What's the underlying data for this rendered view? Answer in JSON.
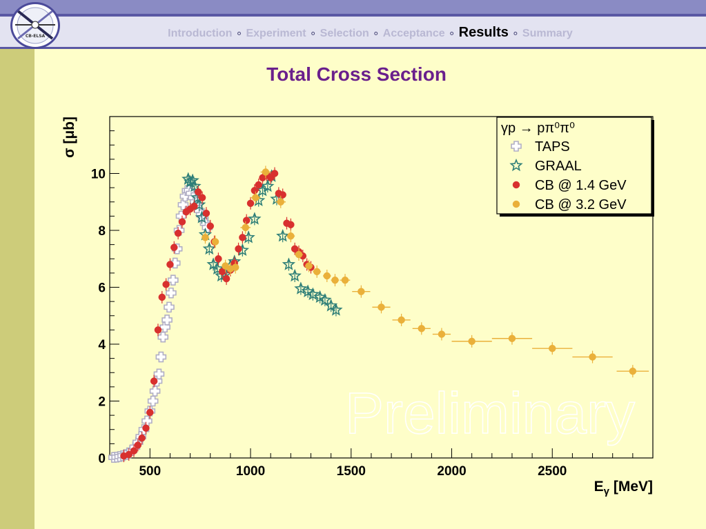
{
  "header": {
    "nav": [
      {
        "label": "Introduction",
        "active": false
      },
      {
        "label": "Experiment",
        "active": false
      },
      {
        "label": "Selection",
        "active": false
      },
      {
        "label": "Acceptance",
        "active": false
      },
      {
        "label": "Results",
        "active": true
      },
      {
        "label": "Summary",
        "active": false
      }
    ],
    "separator": "∘",
    "logo_text": "CB-ELSA"
  },
  "slide": {
    "title": "Total Cross Section"
  },
  "colors": {
    "background": "#fefec9",
    "sidebar": "#cdcc7a",
    "title": "#6a1f8c",
    "taps": "#b0aec4",
    "graal": "#2f7f78",
    "cb14": "#d8302e",
    "cb32": "#eab03a"
  },
  "chart_data": {
    "type": "scatter",
    "xlabel": "E_γ [MeV]",
    "ylabel": "σ [μb]",
    "xlim": [
      300,
      3000
    ],
    "ylim": [
      0,
      12
    ],
    "xticks": [
      500,
      1000,
      1500,
      2000,
      2500
    ],
    "yticks": [
      0,
      2,
      4,
      6,
      8,
      10
    ],
    "legend_placement": "top-right",
    "legend_title": "γp → pπ⁰π⁰",
    "watermark": "Preliminary",
    "series": [
      {
        "name": "TAPS",
        "marker": "open-cross",
        "color": "#b0aec4",
        "x": [
          320,
          335,
          350,
          365,
          380,
          395,
          410,
          425,
          440,
          455,
          470,
          485,
          500,
          515,
          525,
          535,
          545,
          555,
          565,
          575,
          585,
          595,
          605,
          615,
          625,
          635,
          645,
          655,
          665,
          675,
          685,
          695,
          705,
          715,
          725,
          735,
          745,
          755,
          765,
          775,
          785
        ],
        "y": [
          0.02,
          0.03,
          0.05,
          0.08,
          0.12,
          0.18,
          0.26,
          0.38,
          0.55,
          0.75,
          1.0,
          1.3,
          1.65,
          2.0,
          2.35,
          2.7,
          2.95,
          3.55,
          4.25,
          4.6,
          4.85,
          5.3,
          5.8,
          6.25,
          6.85,
          7.35,
          8.0,
          8.5,
          8.9,
          9.2,
          9.4,
          9.4,
          9.3,
          9.15,
          9.0,
          8.85,
          8.7,
          8.55,
          8.4,
          8.25,
          8.1
        ]
      },
      {
        "name": "GRAAL",
        "marker": "open-star",
        "color": "#2f7f78",
        "x": [
          690,
          700,
          712,
          722,
          735,
          745,
          758,
          775,
          795,
          815,
          835,
          855,
          875,
          900,
          920,
          960,
          990,
          1020,
          1040,
          1060,
          1085,
          1105,
          1130,
          1160,
          1190,
          1220,
          1250,
          1285,
          1310,
          1345,
          1370,
          1400,
          1425
        ],
        "y": [
          9.8,
          9.7,
          9.75,
          9.55,
          9.15,
          8.9,
          8.45,
          7.85,
          7.35,
          6.8,
          6.65,
          6.4,
          6.45,
          6.75,
          6.9,
          7.3,
          7.75,
          8.4,
          9.05,
          9.4,
          9.55,
          9.9,
          9.1,
          7.8,
          6.8,
          6.4,
          5.95,
          5.85,
          5.75,
          5.65,
          5.55,
          5.35,
          5.2
        ]
      },
      {
        "name": "CB @ 1.4 GeV",
        "marker": "filled-circle",
        "color": "#d8302e",
        "x": [
          370,
          395,
          420,
          440,
          460,
          480,
          500,
          520,
          540,
          560,
          580,
          600,
          620,
          640,
          660,
          680,
          700,
          720,
          740,
          760,
          780,
          800,
          820,
          840,
          860,
          880,
          900,
          920,
          940,
          960,
          980,
          1000,
          1020,
          1040,
          1060,
          1080,
          1100,
          1120,
          1140,
          1160,
          1180,
          1200,
          1220,
          1240,
          1260,
          1280,
          1300
        ],
        "y": [
          0.07,
          0.12,
          0.25,
          0.45,
          0.7,
          1.05,
          1.6,
          2.7,
          4.5,
          5.65,
          6.1,
          6.8,
          7.4,
          7.9,
          8.3,
          8.65,
          8.75,
          8.85,
          9.35,
          9.15,
          8.6,
          8.15,
          7.6,
          7.0,
          6.55,
          6.3,
          6.6,
          6.85,
          7.35,
          7.75,
          8.35,
          8.95,
          9.4,
          9.6,
          9.85,
          9.95,
          9.85,
          10.0,
          9.3,
          9.25,
          8.25,
          8.2,
          7.35,
          7.25,
          7.1,
          6.8,
          6.7
        ]
      },
      {
        "name": "CB @ 3.2 GeV",
        "marker": "filled-circle",
        "color": "#eab03a",
        "x": [
          775,
          825,
          875,
          900,
          925,
          975,
          1025,
          1075,
          1150,
          1200,
          1240,
          1290,
          1330,
          1380,
          1420,
          1470,
          1550,
          1650,
          1750,
          1850,
          1950,
          2100,
          2300,
          2500,
          2700,
          2900
        ],
        "y": [
          7.75,
          7.6,
          6.75,
          6.65,
          6.7,
          8.1,
          9.15,
          10.05,
          9.0,
          7.8,
          7.15,
          6.75,
          6.55,
          6.4,
          6.25,
          6.25,
          5.85,
          5.3,
          4.85,
          4.55,
          4.35,
          4.1,
          4.2,
          3.85,
          3.55,
          3.05
        ],
        "xerr": [
          0,
          0,
          0,
          0,
          0,
          25,
          25,
          25,
          25,
          20,
          20,
          20,
          20,
          20,
          20,
          25,
          45,
          45,
          45,
          45,
          45,
          100,
          100,
          100,
          100,
          80
        ]
      }
    ]
  }
}
